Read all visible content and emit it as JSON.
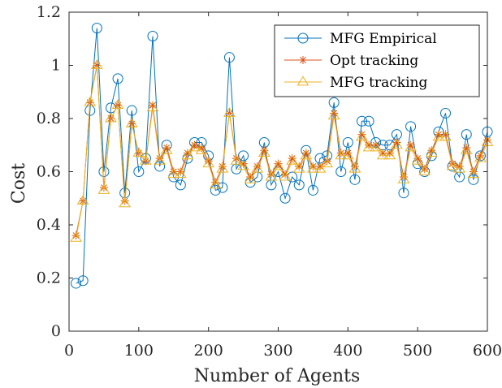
{
  "chart_data": {
    "type": "line",
    "xlabel": "Number of Agents",
    "ylabel": "Cost",
    "xlim": [
      0,
      600
    ],
    "ylim": [
      0,
      1.2
    ],
    "xticks": [
      "0",
      "100",
      "200",
      "300",
      "400",
      "500",
      "600"
    ],
    "yticks": [
      "0",
      "0.2",
      "0.4",
      "0.6",
      "0.8",
      "1",
      "1.2"
    ],
    "grid": false,
    "legend_position": "top-right",
    "x": [
      10,
      20,
      30,
      40,
      50,
      60,
      70,
      80,
      90,
      100,
      110,
      120,
      130,
      140,
      150,
      160,
      170,
      180,
      190,
      200,
      210,
      220,
      230,
      240,
      250,
      260,
      270,
      280,
      290,
      300,
      310,
      320,
      330,
      340,
      350,
      360,
      370,
      380,
      390,
      400,
      410,
      420,
      430,
      440,
      450,
      460,
      470,
      480,
      490,
      500,
      510,
      520,
      530,
      540,
      550,
      560,
      570,
      580,
      590,
      600
    ],
    "series": [
      {
        "name": "MFG Empirical",
        "color": "#0072BD",
        "marker": "circle",
        "values": [
          0.18,
          0.19,
          0.83,
          1.14,
          0.6,
          0.84,
          0.95,
          0.52,
          0.83,
          0.6,
          0.65,
          1.11,
          0.62,
          0.7,
          0.58,
          0.55,
          0.65,
          0.71,
          0.71,
          0.66,
          0.53,
          0.54,
          1.03,
          0.61,
          0.66,
          0.56,
          0.58,
          0.71,
          0.55,
          0.6,
          0.5,
          0.58,
          0.55,
          0.68,
          0.53,
          0.65,
          0.66,
          0.86,
          0.6,
          0.71,
          0.57,
          0.79,
          0.79,
          0.71,
          0.7,
          0.7,
          0.74,
          0.52,
          0.77,
          0.63,
          0.6,
          0.66,
          0.75,
          0.82,
          0.62,
          0.58,
          0.74,
          0.57,
          0.66,
          0.75
        ]
      },
      {
        "name": "Opt tracking",
        "color": "#D95319",
        "marker": "asterisk",
        "values": [
          0.36,
          0.49,
          0.86,
          1.0,
          0.54,
          0.8,
          0.85,
          0.49,
          0.78,
          0.67,
          0.64,
          0.85,
          0.65,
          0.69,
          0.6,
          0.6,
          0.67,
          0.7,
          0.69,
          0.64,
          0.56,
          0.62,
          0.82,
          0.65,
          0.63,
          0.58,
          0.62,
          0.68,
          0.59,
          0.63,
          0.59,
          0.65,
          0.62,
          0.67,
          0.62,
          0.62,
          0.64,
          0.82,
          0.67,
          0.67,
          0.62,
          0.74,
          0.7,
          0.7,
          0.67,
          0.67,
          0.71,
          0.58,
          0.7,
          0.65,
          0.61,
          0.68,
          0.74,
          0.74,
          0.63,
          0.62,
          0.69,
          0.6,
          0.66,
          0.72
        ]
      },
      {
        "name": "MFG tracking",
        "color": "#EDB120",
        "marker": "triangle",
        "values": [
          0.35,
          0.49,
          0.86,
          1.0,
          0.53,
          0.8,
          0.85,
          0.48,
          0.78,
          0.67,
          0.64,
          0.84,
          0.64,
          0.68,
          0.59,
          0.59,
          0.66,
          0.69,
          0.68,
          0.63,
          0.55,
          0.61,
          0.82,
          0.64,
          0.62,
          0.57,
          0.61,
          0.67,
          0.58,
          0.62,
          0.58,
          0.64,
          0.61,
          0.66,
          0.61,
          0.61,
          0.63,
          0.81,
          0.66,
          0.66,
          0.61,
          0.73,
          0.69,
          0.69,
          0.66,
          0.66,
          0.7,
          0.57,
          0.69,
          0.64,
          0.6,
          0.67,
          0.73,
          0.73,
          0.62,
          0.61,
          0.68,
          0.59,
          0.65,
          0.71
        ]
      }
    ]
  }
}
